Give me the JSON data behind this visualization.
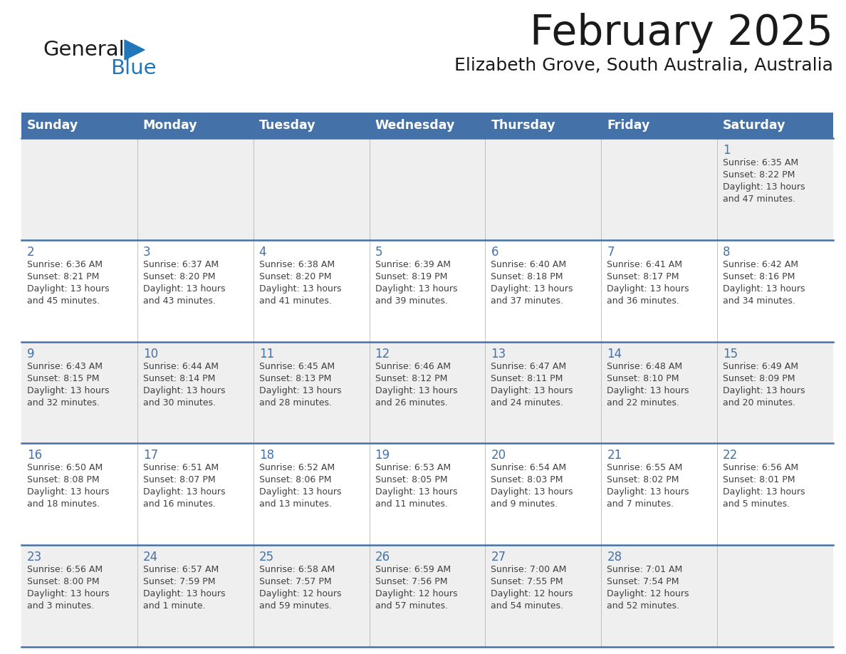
{
  "title": "February 2025",
  "subtitle": "Elizabeth Grove, South Australia, Australia",
  "days_of_week": [
    "Sunday",
    "Monday",
    "Tuesday",
    "Wednesday",
    "Thursday",
    "Friday",
    "Saturday"
  ],
  "header_bg": "#4472a8",
  "header_text": "#ffffff",
  "row_odd_bg": "#efefef",
  "row_even_bg": "#ffffff",
  "separator_color": "#4472a8",
  "day_num_color": "#4472a8",
  "cell_text_color": "#404040",
  "logo_general_color": "#1a1a1a",
  "logo_blue_color": "#2277bb",
  "logo_triangle_color": "#2277bb",
  "calendar_data": [
    [
      null,
      null,
      null,
      null,
      null,
      null,
      {
        "day": 1,
        "sunrise": "6:35 AM",
        "sunset": "8:22 PM",
        "daylight": "13 hours",
        "daylight2": "and 47 minutes."
      }
    ],
    [
      {
        "day": 2,
        "sunrise": "6:36 AM",
        "sunset": "8:21 PM",
        "daylight": "13 hours",
        "daylight2": "and 45 minutes."
      },
      {
        "day": 3,
        "sunrise": "6:37 AM",
        "sunset": "8:20 PM",
        "daylight": "13 hours",
        "daylight2": "and 43 minutes."
      },
      {
        "day": 4,
        "sunrise": "6:38 AM",
        "sunset": "8:20 PM",
        "daylight": "13 hours",
        "daylight2": "and 41 minutes."
      },
      {
        "day": 5,
        "sunrise": "6:39 AM",
        "sunset": "8:19 PM",
        "daylight": "13 hours",
        "daylight2": "and 39 minutes."
      },
      {
        "day": 6,
        "sunrise": "6:40 AM",
        "sunset": "8:18 PM",
        "daylight": "13 hours",
        "daylight2": "and 37 minutes."
      },
      {
        "day": 7,
        "sunrise": "6:41 AM",
        "sunset": "8:17 PM",
        "daylight": "13 hours",
        "daylight2": "and 36 minutes."
      },
      {
        "day": 8,
        "sunrise": "6:42 AM",
        "sunset": "8:16 PM",
        "daylight": "13 hours",
        "daylight2": "and 34 minutes."
      }
    ],
    [
      {
        "day": 9,
        "sunrise": "6:43 AM",
        "sunset": "8:15 PM",
        "daylight": "13 hours",
        "daylight2": "and 32 minutes."
      },
      {
        "day": 10,
        "sunrise": "6:44 AM",
        "sunset": "8:14 PM",
        "daylight": "13 hours",
        "daylight2": "and 30 minutes."
      },
      {
        "day": 11,
        "sunrise": "6:45 AM",
        "sunset": "8:13 PM",
        "daylight": "13 hours",
        "daylight2": "and 28 minutes."
      },
      {
        "day": 12,
        "sunrise": "6:46 AM",
        "sunset": "8:12 PM",
        "daylight": "13 hours",
        "daylight2": "and 26 minutes."
      },
      {
        "day": 13,
        "sunrise": "6:47 AM",
        "sunset": "8:11 PM",
        "daylight": "13 hours",
        "daylight2": "and 24 minutes."
      },
      {
        "day": 14,
        "sunrise": "6:48 AM",
        "sunset": "8:10 PM",
        "daylight": "13 hours",
        "daylight2": "and 22 minutes."
      },
      {
        "day": 15,
        "sunrise": "6:49 AM",
        "sunset": "8:09 PM",
        "daylight": "13 hours",
        "daylight2": "and 20 minutes."
      }
    ],
    [
      {
        "day": 16,
        "sunrise": "6:50 AM",
        "sunset": "8:08 PM",
        "daylight": "13 hours",
        "daylight2": "and 18 minutes."
      },
      {
        "day": 17,
        "sunrise": "6:51 AM",
        "sunset": "8:07 PM",
        "daylight": "13 hours",
        "daylight2": "and 16 minutes."
      },
      {
        "day": 18,
        "sunrise": "6:52 AM",
        "sunset": "8:06 PM",
        "daylight": "13 hours",
        "daylight2": "and 13 minutes."
      },
      {
        "day": 19,
        "sunrise": "6:53 AM",
        "sunset": "8:05 PM",
        "daylight": "13 hours",
        "daylight2": "and 11 minutes."
      },
      {
        "day": 20,
        "sunrise": "6:54 AM",
        "sunset": "8:03 PM",
        "daylight": "13 hours",
        "daylight2": "and 9 minutes."
      },
      {
        "day": 21,
        "sunrise": "6:55 AM",
        "sunset": "8:02 PM",
        "daylight": "13 hours",
        "daylight2": "and 7 minutes."
      },
      {
        "day": 22,
        "sunrise": "6:56 AM",
        "sunset": "8:01 PM",
        "daylight": "13 hours",
        "daylight2": "and 5 minutes."
      }
    ],
    [
      {
        "day": 23,
        "sunrise": "6:56 AM",
        "sunset": "8:00 PM",
        "daylight": "13 hours",
        "daylight2": "and 3 minutes."
      },
      {
        "day": 24,
        "sunrise": "6:57 AM",
        "sunset": "7:59 PM",
        "daylight": "13 hours",
        "daylight2": "and 1 minute."
      },
      {
        "day": 25,
        "sunrise": "6:58 AM",
        "sunset": "7:57 PM",
        "daylight": "12 hours",
        "daylight2": "and 59 minutes."
      },
      {
        "day": 26,
        "sunrise": "6:59 AM",
        "sunset": "7:56 PM",
        "daylight": "12 hours",
        "daylight2": "and 57 minutes."
      },
      {
        "day": 27,
        "sunrise": "7:00 AM",
        "sunset": "7:55 PM",
        "daylight": "12 hours",
        "daylight2": "and 54 minutes."
      },
      {
        "day": 28,
        "sunrise": "7:01 AM",
        "sunset": "7:54 PM",
        "daylight": "12 hours",
        "daylight2": "and 52 minutes."
      },
      null
    ]
  ]
}
